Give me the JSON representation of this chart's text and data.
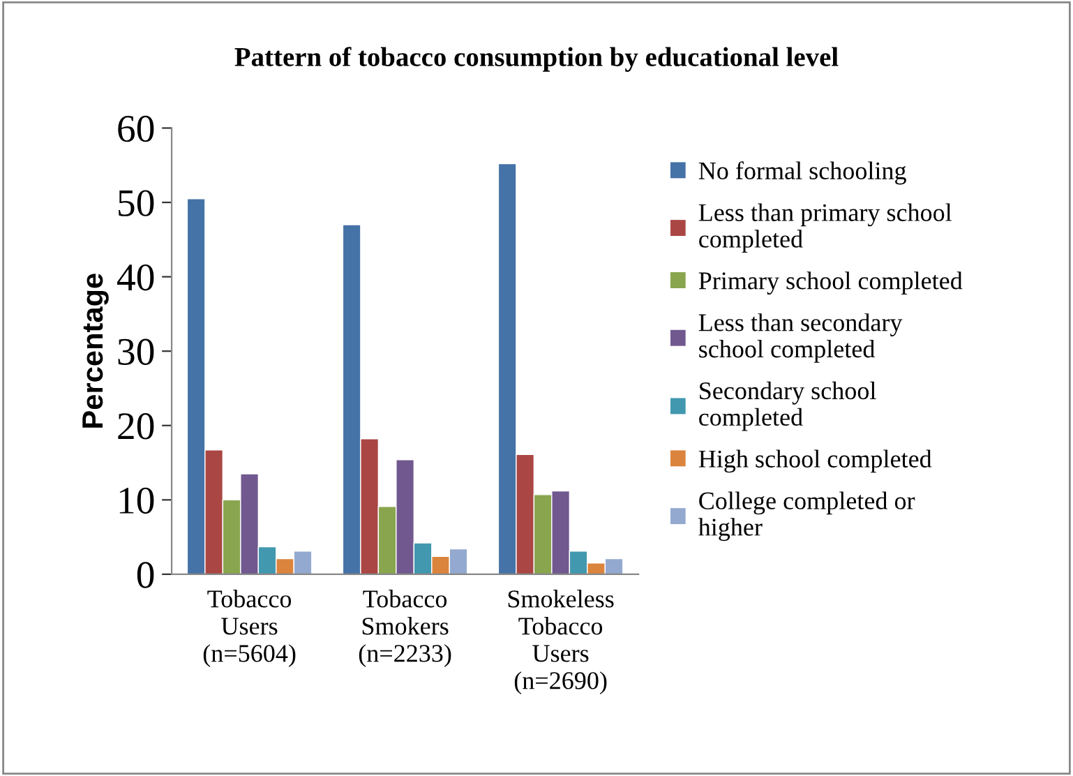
{
  "chart_data": {
    "type": "bar",
    "title": "Pattern of tobacco consumption by educational level",
    "ylabel": "Percentage",
    "categories": [
      "Tobacco\nUsers\n(n=5604)",
      "Tobacco\nSmokers\n(n=2233)",
      "Smokeless\nTobacco\nUsers\n(n=2690)"
    ],
    "series": [
      {
        "name": "No formal schooling",
        "color": "#4572a7",
        "values": [
          50.5,
          47.0,
          55.2
        ]
      },
      {
        "name": "Less than primary school\ncompleted",
        "color": "#aa4643",
        "values": [
          16.7,
          18.2,
          16.1
        ]
      },
      {
        "name": "Primary school completed",
        "color": "#89a54e",
        "values": [
          10.0,
          9.1,
          10.7
        ]
      },
      {
        "name": "Less than secondary\nschool completed",
        "color": "#71588f",
        "values": [
          13.5,
          15.4,
          11.2
        ]
      },
      {
        "name": "Secondary school\ncompleted",
        "color": "#4198af",
        "values": [
          3.7,
          4.2,
          3.1
        ]
      },
      {
        "name": "High school completed",
        "color": "#db843d",
        "values": [
          2.1,
          2.4,
          1.5
        ]
      },
      {
        "name": "College completed or\nhigher",
        "color": "#93a9cf",
        "values": [
          3.1,
          3.4,
          2.1
        ]
      }
    ],
    "ylim": [
      0,
      60
    ],
    "yticks": [
      0,
      10,
      20,
      30,
      40,
      50,
      60
    ],
    "grid": false,
    "legend": "right"
  }
}
